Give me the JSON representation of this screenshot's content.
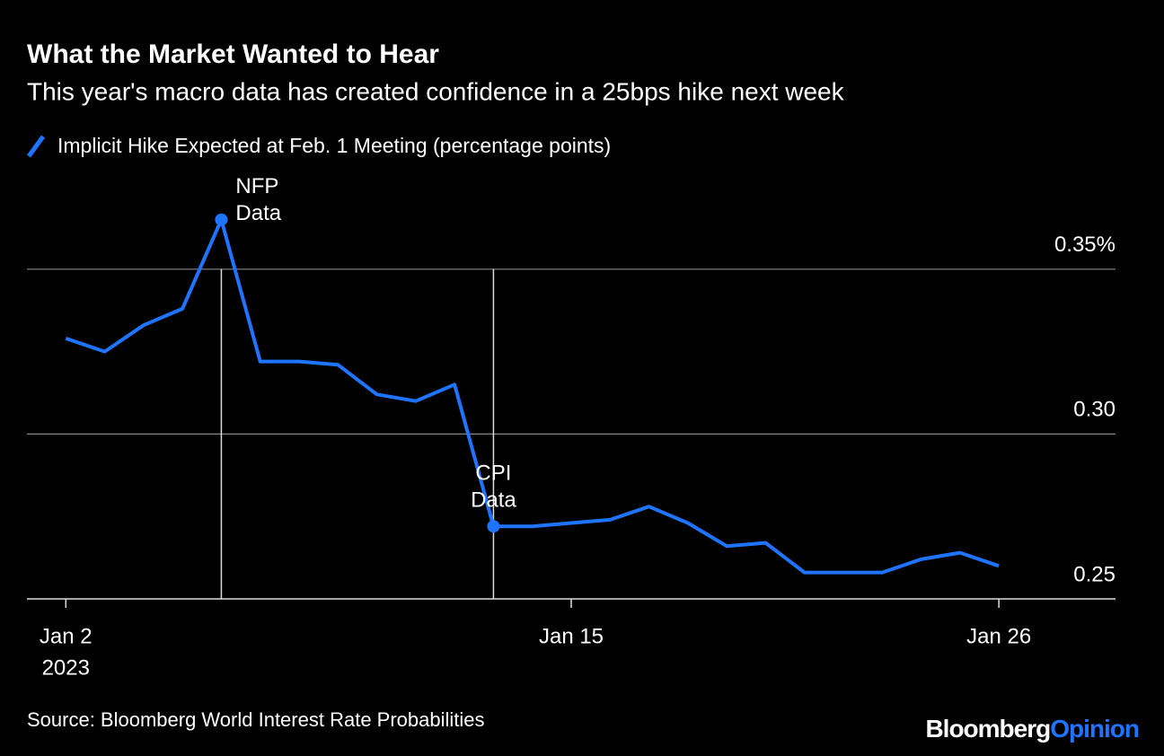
{
  "chart_data": {
    "type": "line",
    "title": "What the Market Wanted to Hear",
    "subtitle": "This year's macro data has created confidence in a 25bps hike next week",
    "x": [
      "2023-01-02",
      "2023-01-03",
      "2023-01-04",
      "2023-01-05",
      "2023-01-06",
      "2023-01-07",
      "2023-01-08",
      "2023-01-09",
      "2023-01-10",
      "2023-01-11",
      "2023-01-12",
      "2023-01-13",
      "2023-01-14",
      "2023-01-15",
      "2023-01-16",
      "2023-01-17",
      "2023-01-18",
      "2023-01-19",
      "2023-01-20",
      "2023-01-21",
      "2023-01-22",
      "2023-01-23",
      "2023-01-24",
      "2023-01-25",
      "2023-01-26"
    ],
    "series": [
      {
        "name": "Implicit Hike Expected at Feb. 1 Meeting (percentage points)",
        "color": "#1f74ff",
        "values": [
          0.329,
          0.325,
          0.333,
          0.338,
          0.365,
          0.322,
          0.322,
          0.321,
          0.312,
          0.31,
          0.315,
          0.272,
          0.272,
          0.273,
          0.274,
          0.278,
          0.273,
          0.266,
          0.267,
          0.258,
          0.258,
          0.258,
          0.262,
          0.264,
          0.26
        ]
      }
    ],
    "xlim": [
      "2023-01-01",
      "2023-01-29"
    ],
    "xticks": [
      {
        "value": "2023-01-02",
        "label": "Jan 2"
      },
      {
        "value": "2023-01-15",
        "label": "Jan 15"
      },
      {
        "value": "2023-01-26",
        "label": "Jan 26"
      }
    ],
    "x_year_label": "2023",
    "ylim": [
      0.25,
      0.375
    ],
    "yticks": [
      0.25,
      {
        "value": 0.3,
        "label": "0.30"
      },
      {
        "value": 0.35,
        "label": "0.35%"
      }
    ],
    "grid": true,
    "annotations": [
      {
        "text": [
          "NFP",
          "Data"
        ],
        "x": "2023-01-06",
        "y": 0.365
      },
      {
        "text": [
          "CPI",
          "Data"
        ],
        "x": "2023-01-13",
        "y": 0.272
      }
    ],
    "source": "Source: Bloomberg World Interest Rate Probabilities",
    "brand": {
      "name": "Bloomberg",
      "section": "Opinion"
    }
  }
}
